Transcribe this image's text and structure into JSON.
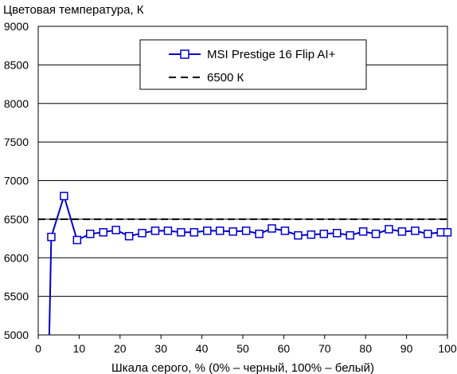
{
  "chart_data": {
    "type": "line",
    "ylabel": "Цветовая температура, К",
    "xlabel": "Шкала серого, % (0% – черный, 100% – белый)",
    "xlim": [
      0,
      100
    ],
    "ylim": [
      5000,
      9000
    ],
    "x_ticks": [
      0,
      10,
      20,
      30,
      40,
      50,
      60,
      70,
      80,
      90,
      100
    ],
    "y_ticks": [
      5000,
      5500,
      6000,
      6500,
      7000,
      7500,
      8000,
      8500,
      9000
    ],
    "grid": "horizontal",
    "legend_position": "top-center",
    "series": [
      {
        "name": "MSI Prestige 16 Flip AI+",
        "color": "#0000cc",
        "marker": "square",
        "x": [
          2.7,
          3.2,
          6.3,
          9.5,
          12.7,
          15.9,
          19.0,
          22.2,
          25.4,
          28.6,
          31.7,
          34.9,
          38.1,
          41.3,
          44.4,
          47.6,
          50.8,
          54.0,
          57.1,
          60.3,
          63.5,
          66.7,
          69.8,
          73.0,
          76.2,
          79.4,
          82.5,
          85.7,
          88.9,
          92.1,
          95.2,
          98.4,
          100
        ],
        "y": [
          5000,
          6270,
          6800,
          6230,
          6310,
          6330,
          6360,
          6280,
          6320,
          6350,
          6350,
          6330,
          6330,
          6350,
          6350,
          6340,
          6350,
          6310,
          6380,
          6350,
          6290,
          6300,
          6310,
          6320,
          6290,
          6340,
          6310,
          6370,
          6340,
          6350,
          6310,
          6330,
          6330
        ]
      },
      {
        "name": "6500 К",
        "color": "#000000",
        "style": "dashed",
        "x": [
          0,
          100
        ],
        "y": [
          6500,
          6500
        ]
      }
    ]
  }
}
